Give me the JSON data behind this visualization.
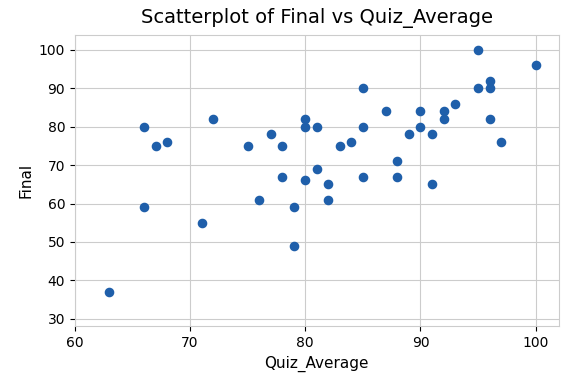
{
  "x": [
    63,
    66,
    66,
    67,
    68,
    71,
    72,
    75,
    76,
    77,
    78,
    78,
    79,
    79,
    80,
    80,
    80,
    81,
    81,
    82,
    82,
    83,
    84,
    85,
    85,
    85,
    87,
    88,
    88,
    89,
    90,
    90,
    91,
    91,
    92,
    92,
    93,
    95,
    95,
    96,
    96,
    96,
    97,
    100
  ],
  "y": [
    37,
    59,
    80,
    75,
    76,
    55,
    82,
    75,
    61,
    78,
    67,
    75,
    59,
    49,
    80,
    66,
    82,
    80,
    69,
    65,
    61,
    75,
    76,
    90,
    67,
    80,
    84,
    71,
    67,
    78,
    84,
    80,
    65,
    78,
    82,
    84,
    86,
    90,
    100,
    82,
    90,
    92,
    76,
    96
  ],
  "title": "Scatterplot of Final vs Quiz_Average",
  "xlabel": "Quiz_Average",
  "ylabel": "Final",
  "xlim": [
    60,
    102
  ],
  "ylim": [
    28,
    104
  ],
  "xticks": [
    60,
    70,
    80,
    90,
    100
  ],
  "yticks": [
    30,
    40,
    50,
    60,
    70,
    80,
    90,
    100
  ],
  "color": "#1f5faa",
  "marker_size": 35,
  "background_color": "#ffffff",
  "grid_color": "#cccccc",
  "title_fontsize": 14,
  "label_fontsize": 11,
  "tick_fontsize": 10
}
